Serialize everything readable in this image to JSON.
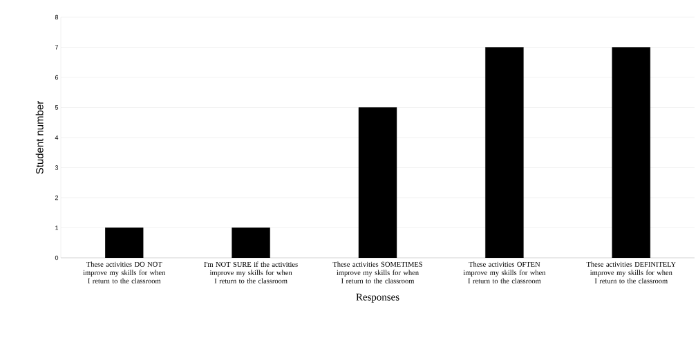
{
  "chart_data": {
    "type": "bar",
    "categories": [
      "These activities DO NOT improve my skills for when I return to the classroom",
      "I'm NOT SURE if the activities improve my skills for when I return to the classroom",
      "These activities SOMETIMES improve my skills for when I return to the classroom",
      "These activities OFTEN improve my skills for when I return to the classroom",
      "These activities DEFINITELY improve my skills for when I return to the classroom"
    ],
    "values": [
      1,
      1,
      5,
      7,
      7
    ],
    "color": "#000000",
    "xlabel": "Responses",
    "ylabel": "Student number",
    "ylim": [
      0,
      8
    ],
    "yticks": [
      0,
      1,
      2,
      3,
      4,
      5,
      6,
      7,
      8
    ],
    "grid": "y"
  }
}
